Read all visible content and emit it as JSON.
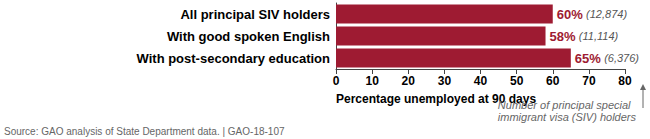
{
  "chart_data": {
    "type": "bar",
    "orientation": "horizontal",
    "categories": [
      "All principal SIV holders",
      "With good spoken English",
      "With post-secondary education"
    ],
    "values": [
      60,
      58,
      65
    ],
    "value_labels": [
      "60%",
      "58%",
      "65%"
    ],
    "count_labels": [
      "(12,874)",
      "(11,114)",
      "(6,376)"
    ],
    "data_labels": true,
    "color": "#9e1b32",
    "xlim": [
      0,
      80
    ],
    "xticks": [
      0,
      10,
      20,
      30,
      40,
      50,
      60,
      70,
      80
    ],
    "x_label": "Percentage unemployed at 90 days",
    "annotation": [
      "Number of principal special",
      "immigrant visa (SIV) holders"
    ],
    "source": "Source: GAO analysis of State Department data. | GAO-18-107",
    "grid": false
  }
}
